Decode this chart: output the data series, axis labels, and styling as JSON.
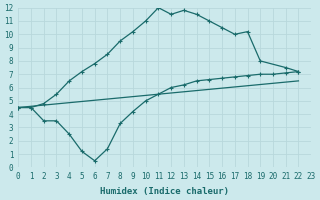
{
  "xlabel": "Humidex (Indice chaleur)",
  "xlim": [
    0,
    23
  ],
  "ylim": [
    0,
    12
  ],
  "xticks": [
    0,
    1,
    2,
    3,
    4,
    5,
    6,
    7,
    8,
    9,
    10,
    11,
    12,
    13,
    14,
    15,
    16,
    17,
    18,
    19,
    20,
    21,
    22,
    23
  ],
  "yticks": [
    0,
    1,
    2,
    3,
    4,
    5,
    6,
    7,
    8,
    9,
    10,
    11,
    12
  ],
  "bg_color": "#cce9ec",
  "line_color": "#1a6b6b",
  "grid_color": "#b8d8dc",
  "curve1_x": [
    0,
    1,
    2,
    3,
    4,
    5,
    6,
    7,
    8,
    9,
    10,
    11,
    12,
    13,
    14,
    15,
    16,
    17,
    18,
    19,
    21,
    22
  ],
  "curve1_y": [
    4.5,
    4.5,
    4.8,
    5.5,
    6.5,
    7.2,
    7.8,
    8.5,
    9.5,
    10.2,
    11.0,
    12.0,
    11.5,
    11.8,
    11.5,
    11.0,
    10.5,
    10.0,
    10.2,
    8.0,
    7.5,
    7.2
  ],
  "curve2_x": [
    0,
    1,
    2,
    3,
    4,
    5,
    6,
    7,
    8,
    9,
    10,
    11,
    12,
    13,
    14,
    15,
    16,
    17,
    18,
    19,
    20,
    21,
    22
  ],
  "curve2_y": [
    4.5,
    4.5,
    3.5,
    3.5,
    2.5,
    1.2,
    0.5,
    1.4,
    3.3,
    4.2,
    5.0,
    5.5,
    6.0,
    6.2,
    6.5,
    6.6,
    6.7,
    6.8,
    6.9,
    7.0,
    7.0,
    7.1,
    7.2
  ],
  "curve3_x": [
    0,
    22
  ],
  "curve3_y": [
    4.5,
    6.5
  ],
  "figsize": [
    3.2,
    2.0
  ],
  "dpi": 100
}
